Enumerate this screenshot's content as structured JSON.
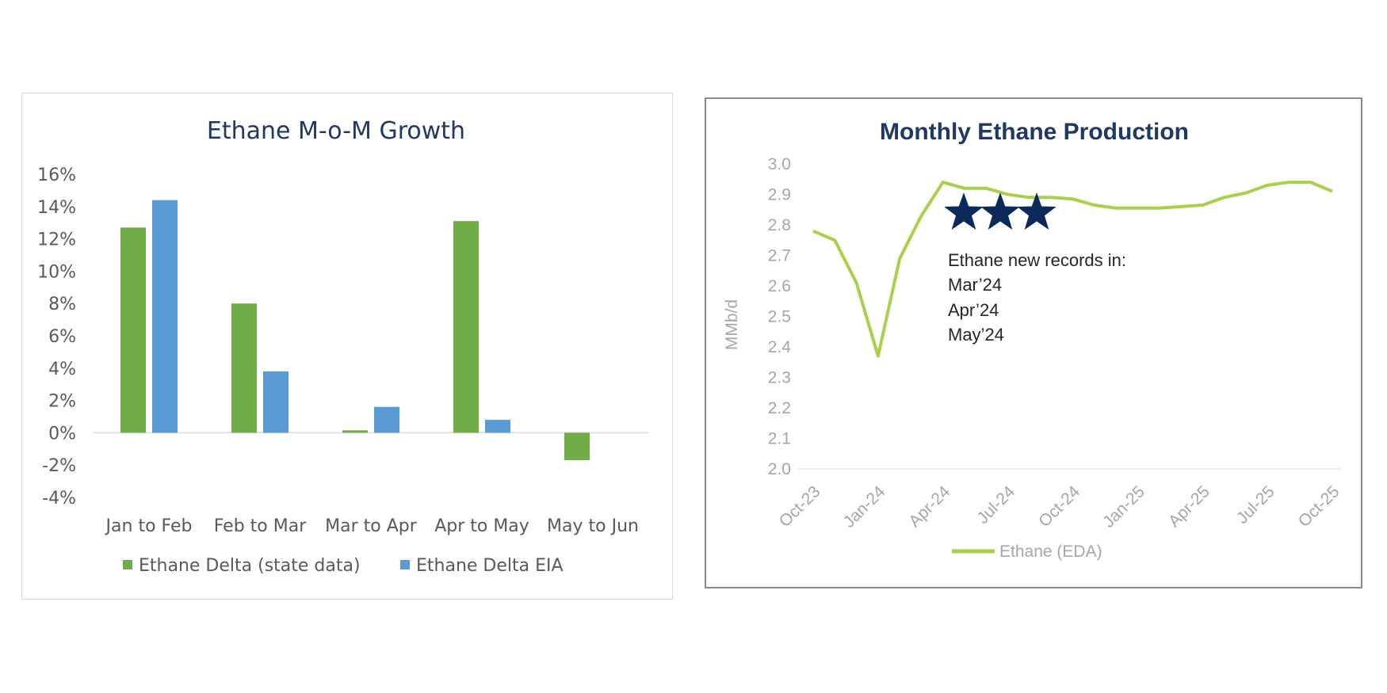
{
  "chart_data": [
    {
      "type": "bar",
      "title": "Ethane M-o-M Growth",
      "categories": [
        "Jan to Feb",
        "Feb to Mar",
        "Mar to Apr",
        "Apr to May",
        "May to Jun"
      ],
      "series": [
        {
          "name": "Ethane Delta (state data)",
          "color": "#70ad47",
          "values": [
            12.7,
            8.0,
            0.15,
            13.1,
            -1.7
          ]
        },
        {
          "name": "Ethane Delta EIA",
          "color": "#5b9bd5",
          "values": [
            14.4,
            3.8,
            1.6,
            0.8,
            null
          ]
        }
      ],
      "ylim": [
        -4,
        16
      ],
      "yticks": [
        "16%",
        "14%",
        "12%",
        "10%",
        "8%",
        "6%",
        "4%",
        "2%",
        "0%",
        "-2%",
        "-4%"
      ],
      "ytick_values": [
        16,
        14,
        12,
        10,
        8,
        6,
        4,
        2,
        0,
        -2,
        -4
      ],
      "grid": false,
      "legend": "bottom"
    },
    {
      "type": "line",
      "title": "Monthly Ethane Production",
      "ylabel": "MMb/d",
      "ylim": [
        2.0,
        3.0
      ],
      "yticks": [
        "3.0",
        "2.9",
        "2.8",
        "2.7",
        "2.6",
        "2.5",
        "2.4",
        "2.3",
        "2.2",
        "2.1",
        "2.0"
      ],
      "ytick_values": [
        3.0,
        2.9,
        2.8,
        2.7,
        2.6,
        2.5,
        2.4,
        2.3,
        2.2,
        2.1,
        2.0
      ],
      "xticks": [
        "Oct-23",
        "Jan-24",
        "Apr-24",
        "Jul-24",
        "Oct-24",
        "Jan-25",
        "Apr-25",
        "Jul-25",
        "Oct-25"
      ],
      "series": [
        {
          "name": "Ethane (EDA)",
          "color": "#a9d04a",
          "x": [
            "Oct-23",
            "Nov-23",
            "Dec-23",
            "Jan-24",
            "Feb-24",
            "Mar-24",
            "Apr-24",
            "May-24",
            "Jun-24",
            "Jul-24",
            "Aug-24",
            "Sep-24",
            "Oct-24",
            "Nov-24",
            "Dec-24",
            "Jan-25",
            "Feb-25",
            "Mar-25",
            "Apr-25",
            "May-25",
            "Jun-25",
            "Jul-25",
            "Aug-25",
            "Sep-25",
            "Oct-25"
          ],
          "values": [
            2.78,
            2.75,
            2.61,
            2.37,
            2.69,
            2.83,
            2.94,
            2.92,
            2.92,
            2.9,
            2.89,
            2.89,
            2.885,
            2.865,
            2.855,
            2.855,
            2.855,
            2.86,
            2.865,
            2.89,
            2.905,
            2.93,
            2.94,
            2.94,
            2.91
          ]
        }
      ],
      "annotation": {
        "stars": 3,
        "star_color": "#0b2a5a",
        "lines": [
          "Ethane new records in:",
          "Mar’24",
          "Apr’24",
          "May’24"
        ]
      },
      "grid": false,
      "legend": "bottom"
    }
  ]
}
